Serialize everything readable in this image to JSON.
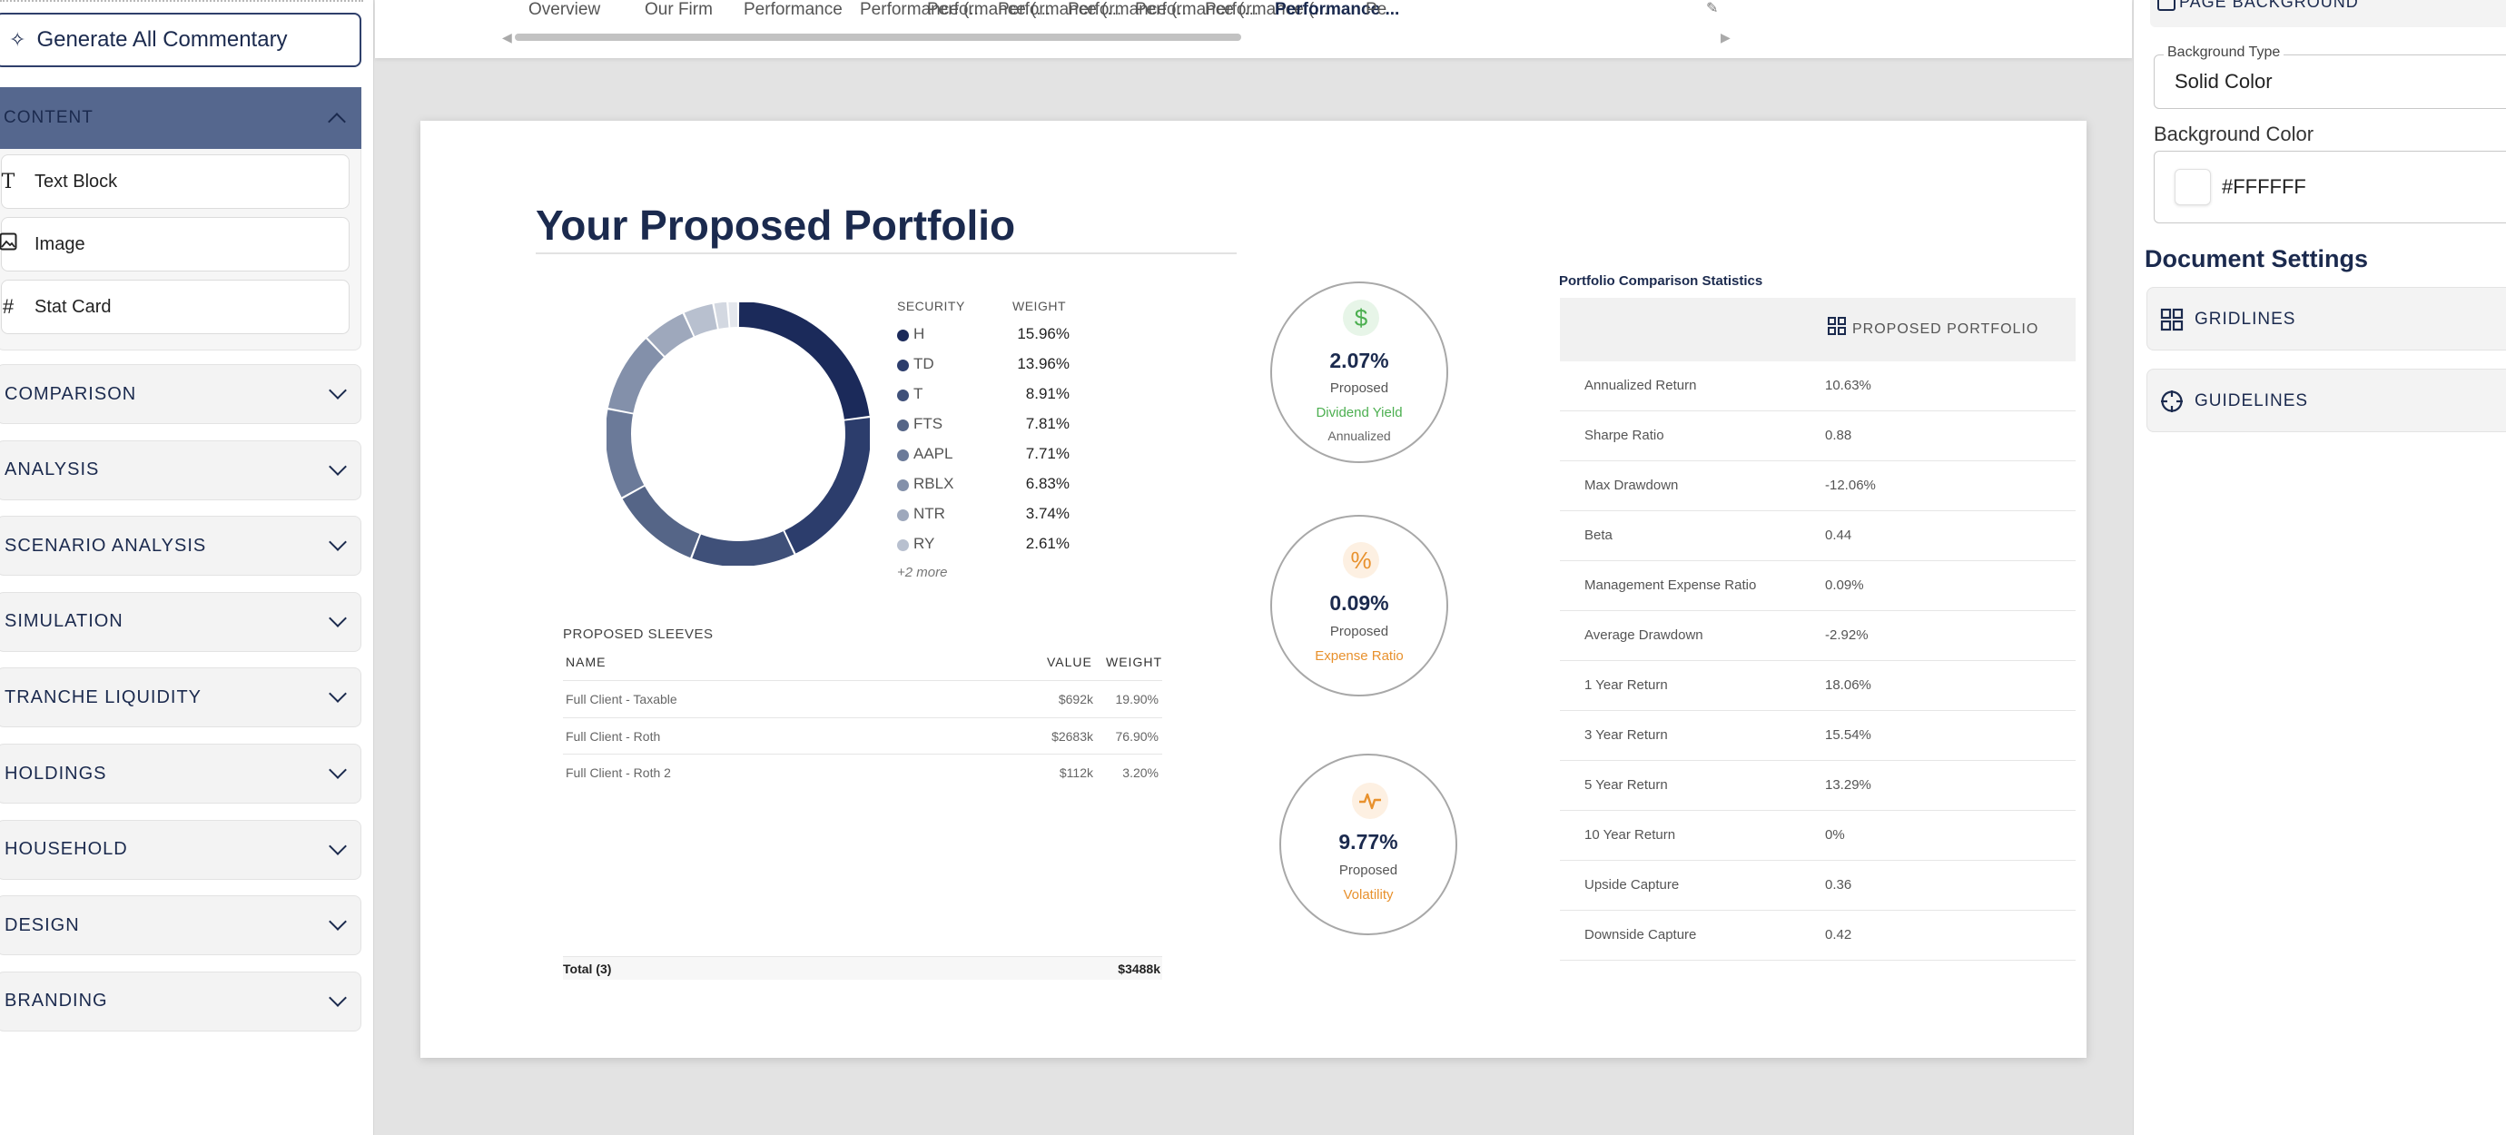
{
  "left_panel": {
    "generate_button": "Generate All Commentary",
    "content_section": {
      "label": "CONTENT",
      "tools": [
        {
          "label": "Text Block",
          "icon": "text-icon"
        },
        {
          "label": "Image",
          "icon": "image-icon"
        },
        {
          "label": "Stat Card",
          "icon": "hash-icon"
        }
      ]
    },
    "sections": [
      "COMPARISON",
      "ANALYSIS",
      "SCENARIO ANALYSIS",
      "SIMULATION",
      "TRANCHE LIQUIDITY",
      "HOLDINGS",
      "HOUSEHOLD",
      "DESIGN",
      "BRANDING"
    ]
  },
  "tabs": [
    {
      "label": "Overview",
      "active": false
    },
    {
      "label": "Our Firm",
      "active": false
    },
    {
      "label": "Performance",
      "active": false
    },
    {
      "label": "Performance (...",
      "active": false
    },
    {
      "label": "Performance (...",
      "active": false
    },
    {
      "label": "Performance (...",
      "active": false
    },
    {
      "label": "Performance (...",
      "active": false
    },
    {
      "label": "Performance (...",
      "active": false
    },
    {
      "label": "Performance (...",
      "active": false
    },
    {
      "label": "Performance ...",
      "active": true
    },
    {
      "label": "Pe",
      "active": false
    }
  ],
  "page": {
    "title": "Your Proposed Portfolio",
    "holdings_header": {
      "security": "SECURITY",
      "weight": "WEIGHT"
    },
    "more_label": "+2 more",
    "sleeves": {
      "title": "PROPOSED SLEEVES",
      "headers": {
        "name": "NAME",
        "value": "VALUE",
        "weight": "WEIGHT"
      },
      "rows": [
        {
          "name": "Full Client - Taxable",
          "value": "$692k",
          "weight": "19.90%"
        },
        {
          "name": "Full Client - Roth",
          "value": "$2683k",
          "weight": "76.90%"
        },
        {
          "name": "Full Client - Roth 2",
          "value": "$112k",
          "weight": "3.20%"
        }
      ],
      "total_label": "Total (3)",
      "total_value": "$3488k"
    },
    "stat_cards": [
      {
        "icon": "dollar-icon",
        "value": "2.07%",
        "sub": "Proposed",
        "label": "Dividend Yield",
        "extra": "Annualized",
        "color": "#4caf50"
      },
      {
        "icon": "percent-icon",
        "value": "0.09%",
        "sub": "Proposed",
        "label": "Expense Ratio",
        "extra": "",
        "color": "#e8912d"
      },
      {
        "icon": "activity-icon",
        "value": "9.77%",
        "sub": "Proposed",
        "label": "Volatility",
        "extra": "",
        "color": "#e8912d"
      }
    ],
    "comparison": {
      "title": "Portfolio Comparison Statistics",
      "column": "PROPOSED PORTFOLIO",
      "rows": [
        {
          "label": "Annualized Return",
          "value": "10.63%"
        },
        {
          "label": "Sharpe Ratio",
          "value": "0.88"
        },
        {
          "label": "Max Drawdown",
          "value": "-12.06%"
        },
        {
          "label": "Beta",
          "value": "0.44"
        },
        {
          "label": "Management Expense Ratio",
          "value": "0.09%"
        },
        {
          "label": "Average Drawdown",
          "value": "-2.92%"
        },
        {
          "label": "1 Year Return",
          "value": "18.06%"
        },
        {
          "label": "3 Year Return",
          "value": "15.54%"
        },
        {
          "label": "5 Year Return",
          "value": "13.29%"
        },
        {
          "label": "10 Year Return",
          "value": "0%"
        },
        {
          "label": "Upside Capture",
          "value": "0.36"
        },
        {
          "label": "Downside Capture",
          "value": "0.42"
        }
      ]
    }
  },
  "chart_data": {
    "type": "pie",
    "categories": [
      "H",
      "TD",
      "T",
      "FTS",
      "AAPL",
      "RBLX",
      "NTR",
      "RY"
    ],
    "values": [
      15.96,
      13.96,
      8.91,
      7.81,
      7.71,
      6.83,
      3.74,
      2.61
    ],
    "value_labels": [
      "15.96%",
      "13.96%",
      "8.91%",
      "7.81%",
      "7.71%",
      "6.83%",
      "3.74%",
      "2.61%"
    ],
    "colors": [
      "#1b2a5a",
      "#2c3d6c",
      "#3f5079",
      "#556587",
      "#6b7a99",
      "#8390aa",
      "#9ea8bc",
      "#b8c0cf"
    ],
    "other_colors": [
      "#d3d8e1",
      "#e4e7ed"
    ],
    "other_values": [
      1.2,
      0.9
    ],
    "title": "",
    "legend": "right"
  },
  "right_panel": {
    "page_background": "PAGE BACKGROUND",
    "background_type_label": "Background Type",
    "background_type_value": "Solid Color",
    "background_color_label": "Background Color",
    "background_color_value": "#FFFFFF",
    "document_settings": "Document Settings",
    "gridlines": "GRIDLINES",
    "guidelines": "GUIDELINES"
  }
}
